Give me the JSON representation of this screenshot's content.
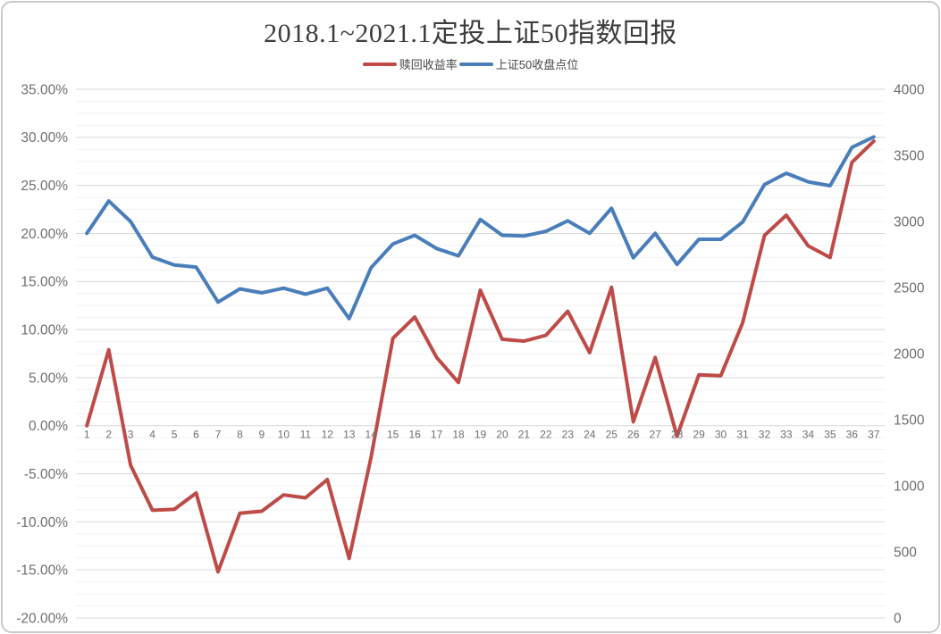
{
  "chart": {
    "title": "2018.1~2021.1定投上证50指数回报",
    "legend": [
      {
        "key": "redemption-return",
        "label": "赎回收益率",
        "color": "#be4b48"
      },
      {
        "key": "sse50-close",
        "label": "上证50收盘点位",
        "color": "#4a7ebb"
      }
    ]
  },
  "chart_data": {
    "type": "line",
    "title": "2018.1~2021.1定投上证50指数回报",
    "categories": [
      1,
      2,
      3,
      4,
      5,
      6,
      7,
      8,
      9,
      10,
      11,
      12,
      13,
      14,
      15,
      16,
      17,
      18,
      19,
      20,
      21,
      22,
      23,
      24,
      25,
      26,
      27,
      28,
      29,
      30,
      31,
      32,
      33,
      34,
      35,
      36,
      37
    ],
    "x_tick_labels": [
      "1",
      "2",
      "3",
      "4",
      "5",
      "6",
      "7",
      "8",
      "9",
      "10",
      "11",
      "12",
      "13",
      "14",
      "15",
      "16",
      "17",
      "18",
      "19",
      "20",
      "21",
      "22",
      "23",
      "24",
      "25",
      "26",
      "27",
      "28",
      "29",
      "30",
      "31",
      "32",
      "33",
      "34",
      "35",
      "36",
      "37"
    ],
    "series": [
      {
        "key": "redemption-return",
        "name": "赎回收益率",
        "axis": "left",
        "unit": "%",
        "color": "#be4b48",
        "values": [
          0.0,
          7.9,
          -4.1,
          -8.8,
          -8.7,
          -7.0,
          -15.2,
          -9.1,
          -8.9,
          -7.2,
          -7.5,
          -5.6,
          -13.8,
          -3.3,
          9.1,
          11.3,
          7.1,
          4.5,
          14.1,
          9.0,
          8.8,
          9.4,
          11.9,
          7.6,
          14.4,
          0.4,
          7.1,
          -1.1,
          5.3,
          5.2,
          10.7,
          19.8,
          21.9,
          18.7,
          17.5,
          27.4,
          29.6
        ]
      },
      {
        "key": "sse50-close",
        "name": "上证50收盘点位",
        "axis": "right",
        "unit": "points",
        "color": "#4a7ebb",
        "values": [
          2910,
          3155,
          3000,
          2730,
          2670,
          2655,
          2390,
          2490,
          2460,
          2495,
          2450,
          2495,
          2265,
          2650,
          2830,
          2895,
          2795,
          2740,
          3015,
          2895,
          2890,
          2925,
          3005,
          2910,
          3100,
          2725,
          2910,
          2675,
          2865,
          2865,
          2995,
          3280,
          3365,
          3300,
          3270,
          3560,
          3640
        ]
      }
    ],
    "left_axis": {
      "min": -20,
      "max": 35,
      "major_step": 5,
      "minor_step": 1.25,
      "format": "percent",
      "tick_labels": [
        "35.00%",
        "30.00%",
        "25.00%",
        "20.00%",
        "15.00%",
        "10.00%",
        "5.00%",
        "0.00%",
        "-5.00%",
        "-10.00%",
        "-15.00%",
        "-20.00%"
      ]
    },
    "right_axis": {
      "min": 0,
      "max": 4000,
      "major_step": 500,
      "tick_labels": [
        "4000",
        "3500",
        "3000",
        "2500",
        "2000",
        "1500",
        "1000",
        "500",
        "0"
      ]
    },
    "grid": {
      "horizontal_major": true,
      "horizontal_minor": true,
      "vertical": false
    },
    "legend_position": "top",
    "colors": {
      "major_gridline": "#d9d9d9",
      "minor_gridline": "#f2f2f2",
      "axis_text": "#6f6f6f",
      "title_text": "#3d3d3d"
    }
  }
}
